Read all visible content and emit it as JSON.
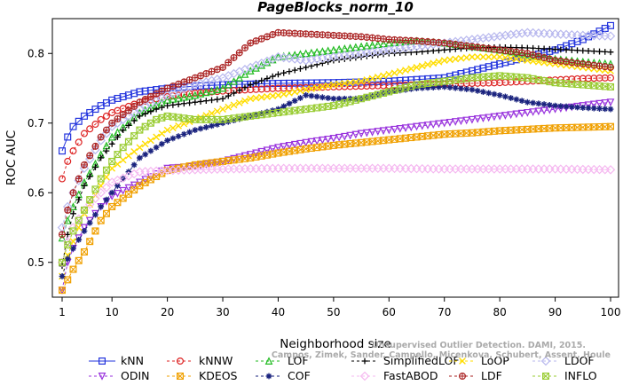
{
  "chart_data": {
    "type": "line",
    "title": "PageBlocks_norm_10",
    "xlabel": "Neighborhood size",
    "ylabel": "ROC AUC",
    "xlim": [
      1,
      100
    ],
    "ylim": [
      0.45,
      0.85
    ],
    "xticks": [
      1,
      10,
      20,
      30,
      40,
      50,
      60,
      70,
      80,
      90,
      100
    ],
    "yticks": [
      0.5,
      0.6,
      0.7,
      0.8
    ],
    "grid": false,
    "legend_position": "bottom",
    "watermark": [
      "Unsupervised Outlier Detection. DAMI, 2015.",
      "Campos, Zimek, Sander, Campello, Micenkova, Schubert, Assent, Houle"
    ],
    "series": [
      {
        "name": "kNN",
        "color": "#2233dd",
        "marker": "square",
        "dash": "none",
        "points": [
          [
            1,
            0.66
          ],
          [
            2,
            0.68
          ],
          [
            3,
            0.695
          ],
          [
            5,
            0.71
          ],
          [
            8,
            0.725
          ],
          [
            10,
            0.733
          ],
          [
            15,
            0.745
          ],
          [
            20,
            0.75
          ],
          [
            25,
            0.753
          ],
          [
            30,
            0.755
          ],
          [
            40,
            0.757
          ],
          [
            50,
            0.758
          ],
          [
            60,
            0.76
          ],
          [
            70,
            0.765
          ],
          [
            75,
            0.775
          ],
          [
            80,
            0.785
          ],
          [
            85,
            0.795
          ],
          [
            90,
            0.805
          ],
          [
            95,
            0.82
          ],
          [
            100,
            0.84
          ]
        ]
      },
      {
        "name": "kNNW",
        "color": "#dd2222",
        "marker": "circle",
        "dash": "dash",
        "points": [
          [
            1,
            0.62
          ],
          [
            2,
            0.645
          ],
          [
            3,
            0.66
          ],
          [
            5,
            0.685
          ],
          [
            8,
            0.705
          ],
          [
            10,
            0.715
          ],
          [
            15,
            0.73
          ],
          [
            20,
            0.738
          ],
          [
            25,
            0.743
          ],
          [
            30,
            0.746
          ],
          [
            40,
            0.75
          ],
          [
            50,
            0.752
          ],
          [
            60,
            0.754
          ],
          [
            70,
            0.756
          ],
          [
            80,
            0.758
          ],
          [
            90,
            0.762
          ],
          [
            95,
            0.764
          ],
          [
            100,
            0.765
          ]
        ]
      },
      {
        "name": "LOF",
        "color": "#22bb22",
        "marker": "triangle",
        "dash": "dash",
        "points": [
          [
            1,
            0.535
          ],
          [
            2,
            0.56
          ],
          [
            3,
            0.58
          ],
          [
            5,
            0.615
          ],
          [
            8,
            0.655
          ],
          [
            10,
            0.68
          ],
          [
            15,
            0.715
          ],
          [
            20,
            0.733
          ],
          [
            25,
            0.74
          ],
          [
            30,
            0.75
          ],
          [
            35,
            0.775
          ],
          [
            40,
            0.795
          ],
          [
            45,
            0.8
          ],
          [
            50,
            0.805
          ],
          [
            55,
            0.81
          ],
          [
            60,
            0.815
          ],
          [
            65,
            0.818
          ],
          [
            70,
            0.815
          ],
          [
            75,
            0.81
          ],
          [
            80,
            0.805
          ],
          [
            85,
            0.798
          ],
          [
            90,
            0.792
          ],
          [
            95,
            0.788
          ],
          [
            100,
            0.785
          ]
        ]
      },
      {
        "name": "SimplifiedLOF",
        "color": "#000000",
        "marker": "plus",
        "dash": "dash",
        "points": [
          [
            1,
            0.495
          ],
          [
            2,
            0.54
          ],
          [
            3,
            0.57
          ],
          [
            5,
            0.61
          ],
          [
            8,
            0.65
          ],
          [
            10,
            0.67
          ],
          [
            12,
            0.69
          ],
          [
            15,
            0.71
          ],
          [
            18,
            0.72
          ],
          [
            20,
            0.725
          ],
          [
            25,
            0.73
          ],
          [
            30,
            0.735
          ],
          [
            35,
            0.755
          ],
          [
            40,
            0.77
          ],
          [
            45,
            0.78
          ],
          [
            50,
            0.79
          ],
          [
            55,
            0.795
          ],
          [
            60,
            0.8
          ],
          [
            65,
            0.802
          ],
          [
            70,
            0.805
          ],
          [
            75,
            0.808
          ],
          [
            80,
            0.809
          ],
          [
            85,
            0.808
          ],
          [
            90,
            0.806
          ],
          [
            95,
            0.804
          ],
          [
            100,
            0.802
          ]
        ]
      },
      {
        "name": "LoOP",
        "color": "#ffdd00",
        "marker": "x",
        "dash": "dash",
        "points": [
          [
            1,
            0.48
          ],
          [
            2,
            0.51
          ],
          [
            3,
            0.53
          ],
          [
            5,
            0.57
          ],
          [
            8,
            0.61
          ],
          [
            10,
            0.635
          ],
          [
            15,
            0.665
          ],
          [
            20,
            0.69
          ],
          [
            25,
            0.705
          ],
          [
            30,
            0.72
          ],
          [
            35,
            0.735
          ],
          [
            40,
            0.74
          ],
          [
            45,
            0.748
          ],
          [
            50,
            0.755
          ],
          [
            55,
            0.76
          ],
          [
            60,
            0.77
          ],
          [
            65,
            0.78
          ],
          [
            70,
            0.79
          ],
          [
            75,
            0.795
          ],
          [
            80,
            0.795
          ],
          [
            85,
            0.79
          ],
          [
            90,
            0.785
          ],
          [
            95,
            0.78
          ],
          [
            100,
            0.775
          ]
        ]
      },
      {
        "name": "LDOF",
        "color": "#b8b8ee",
        "marker": "diamond",
        "dash": "dash",
        "points": [
          [
            1,
            0.55
          ],
          [
            2,
            0.58
          ],
          [
            3,
            0.6
          ],
          [
            5,
            0.635
          ],
          [
            8,
            0.675
          ],
          [
            10,
            0.695
          ],
          [
            15,
            0.72
          ],
          [
            20,
            0.74
          ],
          [
            25,
            0.755
          ],
          [
            30,
            0.765
          ],
          [
            35,
            0.78
          ],
          [
            40,
            0.795
          ],
          [
            45,
            0.79
          ],
          [
            50,
            0.795
          ],
          [
            55,
            0.8
          ],
          [
            60,
            0.805
          ],
          [
            65,
            0.81
          ],
          [
            70,
            0.815
          ],
          [
            75,
            0.82
          ],
          [
            80,
            0.825
          ],
          [
            85,
            0.83
          ],
          [
            90,
            0.828
          ],
          [
            95,
            0.826
          ],
          [
            100,
            0.825
          ]
        ]
      },
      {
        "name": "ODIN",
        "color": "#9933dd",
        "marker": "triangle-down",
        "dash": "dash",
        "points": [
          [
            1,
            0.46
          ],
          [
            2,
            0.5
          ],
          [
            3,
            0.52
          ],
          [
            5,
            0.55
          ],
          [
            8,
            0.58
          ],
          [
            10,
            0.595
          ],
          [
            15,
            0.615
          ],
          [
            20,
            0.635
          ],
          [
            25,
            0.638
          ],
          [
            30,
            0.645
          ],
          [
            35,
            0.655
          ],
          [
            40,
            0.665
          ],
          [
            45,
            0.672
          ],
          [
            50,
            0.678
          ],
          [
            55,
            0.685
          ],
          [
            60,
            0.69
          ],
          [
            65,
            0.695
          ],
          [
            70,
            0.7
          ],
          [
            75,
            0.705
          ],
          [
            80,
            0.71
          ],
          [
            85,
            0.715
          ],
          [
            90,
            0.72
          ],
          [
            95,
            0.725
          ],
          [
            100,
            0.73
          ]
        ]
      },
      {
        "name": "KDEOS",
        "color": "#f0a000",
        "marker": "square-x",
        "dash": "dash",
        "points": [
          [
            1,
            0.46
          ],
          [
            2,
            0.475
          ],
          [
            3,
            0.49
          ],
          [
            5,
            0.515
          ],
          [
            8,
            0.56
          ],
          [
            10,
            0.58
          ],
          [
            15,
            0.61
          ],
          [
            20,
            0.632
          ],
          [
            25,
            0.64
          ],
          [
            30,
            0.645
          ],
          [
            35,
            0.65
          ],
          [
            40,
            0.657
          ],
          [
            45,
            0.663
          ],
          [
            50,
            0.668
          ],
          [
            55,
            0.672
          ],
          [
            60,
            0.676
          ],
          [
            65,
            0.68
          ],
          [
            70,
            0.684
          ],
          [
            75,
            0.686
          ],
          [
            80,
            0.689
          ],
          [
            85,
            0.691
          ],
          [
            90,
            0.693
          ],
          [
            95,
            0.694
          ],
          [
            100,
            0.695
          ]
        ]
      },
      {
        "name": "COF",
        "color": "#1a237e",
        "marker": "asterisk",
        "dash": "dash",
        "points": [
          [
            1,
            0.48
          ],
          [
            2,
            0.505
          ],
          [
            3,
            0.52
          ],
          [
            5,
            0.545
          ],
          [
            8,
            0.58
          ],
          [
            10,
            0.6
          ],
          [
            15,
            0.65
          ],
          [
            20,
            0.675
          ],
          [
            25,
            0.69
          ],
          [
            30,
            0.7
          ],
          [
            35,
            0.71
          ],
          [
            40,
            0.72
          ],
          [
            45,
            0.74
          ],
          [
            50,
            0.735
          ],
          [
            55,
            0.735
          ],
          [
            60,
            0.745
          ],
          [
            65,
            0.75
          ],
          [
            70,
            0.752
          ],
          [
            75,
            0.748
          ],
          [
            80,
            0.74
          ],
          [
            85,
            0.73
          ],
          [
            90,
            0.725
          ],
          [
            95,
            0.722
          ],
          [
            100,
            0.72
          ]
        ]
      },
      {
        "name": "FastABOD",
        "color": "#f5b8f0",
        "marker": "diamond",
        "dash": "dash",
        "points": [
          [
            1,
            0.5
          ],
          [
            2,
            0.53
          ],
          [
            3,
            0.55
          ],
          [
            5,
            0.575
          ],
          [
            8,
            0.6
          ],
          [
            10,
            0.615
          ],
          [
            15,
            0.63
          ],
          [
            20,
            0.632
          ],
          [
            30,
            0.634
          ],
          [
            40,
            0.635
          ],
          [
            50,
            0.635
          ],
          [
            60,
            0.635
          ],
          [
            70,
            0.634
          ],
          [
            80,
            0.634
          ],
          [
            90,
            0.634
          ],
          [
            100,
            0.633
          ]
        ]
      },
      {
        "name": "LDF",
        "color": "#aa2222",
        "marker": "circle-plus",
        "dash": "dash",
        "points": [
          [
            1,
            0.54
          ],
          [
            2,
            0.575
          ],
          [
            3,
            0.6
          ],
          [
            5,
            0.64
          ],
          [
            8,
            0.68
          ],
          [
            10,
            0.7
          ],
          [
            15,
            0.73
          ],
          [
            20,
            0.75
          ],
          [
            25,
            0.765
          ],
          [
            30,
            0.78
          ],
          [
            35,
            0.815
          ],
          [
            40,
            0.83
          ],
          [
            45,
            0.828
          ],
          [
            50,
            0.826
          ],
          [
            55,
            0.824
          ],
          [
            60,
            0.82
          ],
          [
            65,
            0.818
          ],
          [
            70,
            0.815
          ],
          [
            75,
            0.81
          ],
          [
            80,
            0.805
          ],
          [
            85,
            0.8
          ],
          [
            90,
            0.79
          ],
          [
            95,
            0.785
          ],
          [
            100,
            0.78
          ]
        ]
      },
      {
        "name": "INFLO",
        "color": "#99cc33",
        "marker": "square-x",
        "dash": "dash",
        "points": [
          [
            1,
            0.5
          ],
          [
            2,
            0.525
          ],
          [
            3,
            0.545
          ],
          [
            5,
            0.575
          ],
          [
            8,
            0.62
          ],
          [
            10,
            0.645
          ],
          [
            12,
            0.665
          ],
          [
            15,
            0.69
          ],
          [
            18,
            0.705
          ],
          [
            20,
            0.71
          ],
          [
            25,
            0.705
          ],
          [
            30,
            0.705
          ],
          [
            35,
            0.71
          ],
          [
            40,
            0.715
          ],
          [
            45,
            0.72
          ],
          [
            50,
            0.725
          ],
          [
            55,
            0.735
          ],
          [
            60,
            0.745
          ],
          [
            65,
            0.755
          ],
          [
            70,
            0.76
          ],
          [
            75,
            0.765
          ],
          [
            80,
            0.768
          ],
          [
            85,
            0.765
          ],
          [
            90,
            0.758
          ],
          [
            95,
            0.755
          ],
          [
            100,
            0.752
          ]
        ]
      }
    ]
  }
}
